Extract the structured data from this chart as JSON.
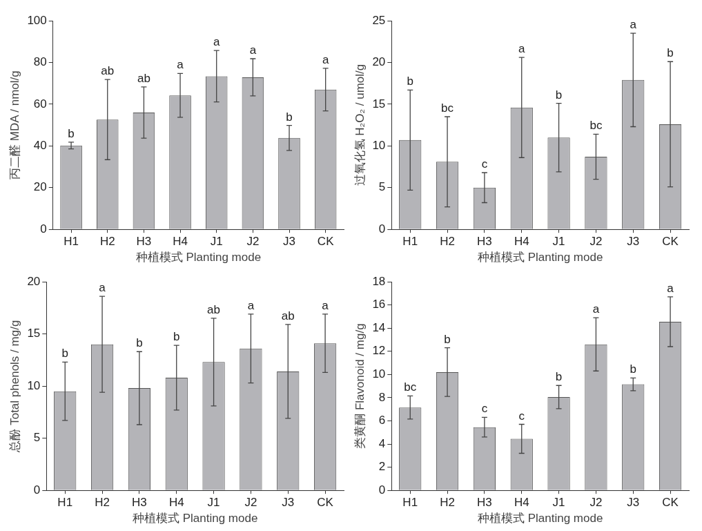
{
  "chart_data": [
    {
      "type": "bar",
      "xlabel": "种植模式 Planting mode",
      "ylabel": "丙二醛 MDA / nmol/g",
      "categories": [
        "H1",
        "H2",
        "H3",
        "H4",
        "J1",
        "J2",
        "J3",
        "CK"
      ],
      "color": "#b4b4b8",
      "values": [
        40.2,
        52.6,
        56,
        64.2,
        73.4,
        72.9,
        43.8,
        67
      ],
      "errors": [
        1.6,
        19.2,
        12.3,
        10.5,
        12.3,
        8.9,
        6,
        10.2
      ],
      "ylim": [
        0,
        100
      ],
      "yticks": [
        0,
        20,
        40,
        60,
        80,
        100
      ],
      "annotations": [
        {
          "text": "b",
          "x": "H1",
          "y": 41.8
        },
        {
          "text": "ab",
          "x": "H2",
          "y": 71.8
        },
        {
          "text": "ab",
          "x": "H3",
          "y": 68.3
        },
        {
          "text": "a",
          "x": "H4",
          "y": 74.7
        },
        {
          "text": "a",
          "x": "J1",
          "y": 85.7
        },
        {
          "text": "a",
          "x": "J2",
          "y": 81.8
        },
        {
          "text": "b",
          "x": "J3",
          "y": 49.8
        },
        {
          "text": "a",
          "x": "CK",
          "y": 77.2
        }
      ]
    },
    {
      "type": "bar",
      "xlabel": "种植模式 Planting mode",
      "ylabel": "过氧化氢 H₂O₂ / umol/g",
      "categories": [
        "H1",
        "H2",
        "H3",
        "H4",
        "J1",
        "J2",
        "J3",
        "CK"
      ],
      "color": "#b4b4b8",
      "values": [
        10.7,
        8.1,
        5.0,
        14.6,
        11.0,
        8.7,
        17.9,
        12.6
      ],
      "errors": [
        6,
        5.4,
        1.8,
        6,
        4.1,
        2.7,
        5.6,
        7.5
      ],
      "ylim": [
        0,
        25
      ],
      "yticks": [
        0,
        5,
        10,
        15,
        20,
        25
      ],
      "annotations": [
        {
          "text": "b",
          "x": "H1",
          "y": 16.7
        },
        {
          "text": "bc",
          "x": "H2",
          "y": 13.5
        },
        {
          "text": "c",
          "x": "H3",
          "y": 6.8
        },
        {
          "text": "a",
          "x": "H4",
          "y": 20.6
        },
        {
          "text": "b",
          "x": "J1",
          "y": 15.1
        },
        {
          "text": "bc",
          "x": "J2",
          "y": 11.4
        },
        {
          "text": "a",
          "x": "J3",
          "y": 23.5
        },
        {
          "text": "b",
          "x": "CK",
          "y": 20.1
        }
      ]
    },
    {
      "type": "bar",
      "xlabel": "种植模式 Planting mode",
      "ylabel": "总酚 Total phenols / mg/g",
      "categories": [
        "H1",
        "H2",
        "H3",
        "H4",
        "J1",
        "J2",
        "J3",
        "CK"
      ],
      "color": "#b4b4b8",
      "values": [
        9.5,
        14.0,
        9.8,
        10.8,
        12.3,
        13.6,
        11.4,
        14.1
      ],
      "errors": [
        2.8,
        4.6,
        3.5,
        3.1,
        4.2,
        3.3,
        4.5,
        2.8
      ],
      "ylim": [
        0,
        20
      ],
      "yticks": [
        0,
        5,
        10,
        15,
        20
      ],
      "annotations": [
        {
          "text": "b",
          "x": "H1",
          "y": 12.3
        },
        {
          "text": "a",
          "x": "H2",
          "y": 18.6
        },
        {
          "text": "b",
          "x": "H3",
          "y": 13.3
        },
        {
          "text": "b",
          "x": "H4",
          "y": 13.9
        },
        {
          "text": "ab",
          "x": "J1",
          "y": 16.5
        },
        {
          "text": "a",
          "x": "J2",
          "y": 16.9
        },
        {
          "text": "ab",
          "x": "J3",
          "y": 15.9
        },
        {
          "text": "a",
          "x": "CK",
          "y": 16.9
        }
      ]
    },
    {
      "type": "bar",
      "xlabel": "种植模式 Planting mode",
      "ylabel": "类黄酮 Flavonoid / mg/g",
      "categories": [
        "H1",
        "H2",
        "H3",
        "H4",
        "J1",
        "J2",
        "J3",
        "CK"
      ],
      "color": "#b4b4b8",
      "values": [
        7.15,
        10.2,
        5.45,
        4.45,
        8.05,
        12.6,
        9.15,
        14.55
      ],
      "errors": [
        1.0,
        2.1,
        0.85,
        1.25,
        1.0,
        2.3,
        0.55,
        2.15
      ],
      "ylim": [
        0,
        18
      ],
      "yticks": [
        0,
        2,
        4,
        6,
        8,
        10,
        12,
        14,
        16,
        18
      ],
      "annotations": [
        {
          "text": "bc",
          "x": "H1",
          "y": 8.15
        },
        {
          "text": "b",
          "x": "H2",
          "y": 12.3
        },
        {
          "text": "c",
          "x": "H3",
          "y": 6.3
        },
        {
          "text": "c",
          "x": "H4",
          "y": 5.7
        },
        {
          "text": "b",
          "x": "J1",
          "y": 9.05
        },
        {
          "text": "a",
          "x": "J2",
          "y": 14.9
        },
        {
          "text": "b",
          "x": "J3",
          "y": 9.7
        },
        {
          "text": "a",
          "x": "CK",
          "y": 16.7
        }
      ]
    }
  ]
}
